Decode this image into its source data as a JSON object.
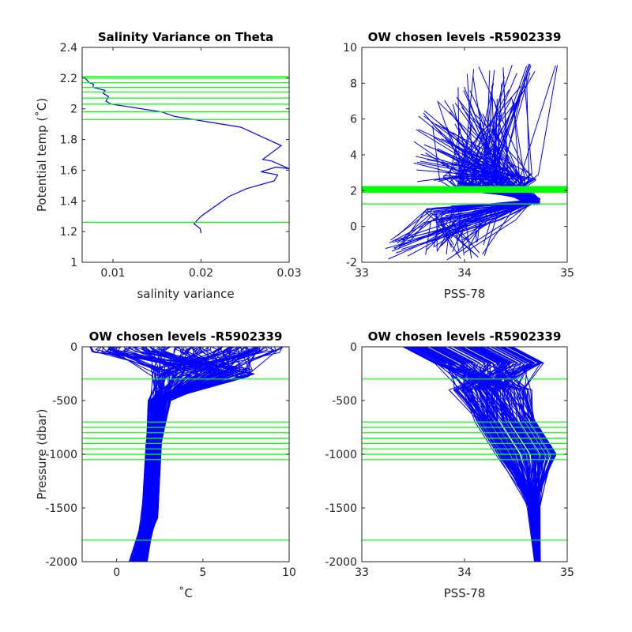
{
  "chart_data": [
    {
      "type": "line",
      "title": "Salinity Variance on Theta",
      "xlabel": "salinity variance",
      "ylabel": "Potential temp (˚C)",
      "xlim": [
        0.0065,
        0.03
      ],
      "ylim": [
        1.0,
        2.4
      ],
      "xticks": [
        0.01,
        0.02,
        0.03
      ],
      "xtick_labels": [
        "0.01",
        "0.02",
        "0.03"
      ],
      "yticks": [
        1.0,
        1.2,
        1.4,
        1.6,
        1.8,
        2.0,
        2.2,
        2.4
      ],
      "ytick_labels": [
        "1",
        "1.2",
        "1.4",
        "1.6",
        "1.8",
        "2",
        "2.2",
        "2.4"
      ],
      "grid": false,
      "series": [
        {
          "color": "#0000ff",
          "points": [
            [
              0.02,
              1.19
            ],
            [
              0.0199,
              1.22
            ],
            [
              0.0192,
              1.25
            ],
            [
              0.0195,
              1.27
            ],
            [
              0.02,
              1.3
            ],
            [
              0.0232,
              1.43
            ],
            [
              0.0252,
              1.48
            ],
            [
              0.0283,
              1.53
            ],
            [
              0.0287,
              1.57
            ],
            [
              0.0268,
              1.59
            ],
            [
              0.0285,
              1.62
            ],
            [
              0.03,
              1.61
            ],
            [
              0.028,
              1.66
            ],
            [
              0.027,
              1.67
            ],
            [
              0.0291,
              1.76
            ],
            [
              0.0245,
              1.88
            ],
            [
              0.017,
              1.95
            ],
            [
              0.0155,
              1.98
            ],
            [
              0.011,
              2.02
            ],
            [
              0.0098,
              2.03
            ],
            [
              0.0092,
              2.05
            ],
            [
              0.0095,
              2.08
            ],
            [
              0.0089,
              2.1
            ],
            [
              0.0091,
              2.12
            ],
            [
              0.0077,
              2.14
            ],
            [
              0.0078,
              2.16
            ],
            [
              0.0073,
              2.17
            ],
            [
              0.007,
              2.19
            ],
            [
              0.0068,
              2.2
            ]
          ]
        }
      ],
      "hlines": {
        "color": "#00ff00",
        "values": [
          1.26,
          1.93,
          1.98,
          2.03,
          2.07,
          2.11,
          2.14,
          2.17,
          2.2,
          2.21
        ]
      }
    },
    {
      "type": "line",
      "title": "OW chosen levels -R5902339",
      "xlabel": "PSS-78",
      "ylabel": "",
      "xlim": [
        33,
        35
      ],
      "ylim": [
        -2,
        10
      ],
      "xticks": [
        33,
        34,
        35
      ],
      "xtick_labels": [
        "33",
        "34",
        "35"
      ],
      "yticks": [
        -2,
        0,
        2,
        4,
        6,
        8,
        10
      ],
      "ytick_labels": [
        "-2",
        "0",
        "2",
        "4",
        "6",
        "8",
        "10"
      ],
      "grid": false,
      "hlines": {
        "color": "#00ff00",
        "values": [
          1.26,
          1.93,
          1.98,
          2.03,
          2.07,
          2.11,
          2.14,
          2.17,
          2.2,
          2.21
        ]
      }
    },
    {
      "type": "line",
      "title": "OW chosen levels -R5902339",
      "xlabel": "˚C",
      "ylabel": "Pressure (dbar)",
      "xlim": [
        -2,
        10
      ],
      "ylim": [
        -2000,
        0
      ],
      "xticks": [
        0,
        5,
        10
      ],
      "xtick_labels": [
        "0",
        "5",
        "10"
      ],
      "yticks": [
        -2000,
        -1500,
        -1000,
        -500,
        0
      ],
      "ytick_labels": [
        "-2000",
        "-1500",
        "-1000",
        "-500",
        "0"
      ],
      "grid": false,
      "hlines": {
        "color": "#00ff00",
        "values": [
          -300,
          -700,
          -750,
          -800,
          -850,
          -900,
          -950,
          -1000,
          -1050,
          -1800
        ]
      }
    },
    {
      "type": "line",
      "title": "OW chosen levels -R5902339",
      "xlabel": "PSS-78",
      "ylabel": "",
      "xlim": [
        33,
        35
      ],
      "ylim": [
        -2000,
        0
      ],
      "xticks": [
        33,
        34,
        35
      ],
      "xtick_labels": [
        "33",
        "34",
        "35"
      ],
      "yticks": [
        -2000,
        -1500,
        -1000,
        -500,
        0
      ],
      "ytick_labels": [
        "-2000",
        "-1500",
        "-1000",
        "-500",
        "0"
      ],
      "grid": false,
      "hlines": {
        "color": "#00ff00",
        "values": [
          -300,
          -700,
          -750,
          -800,
          -850,
          -900,
          -950,
          -1000,
          -1050,
          -1800
        ]
      }
    }
  ]
}
